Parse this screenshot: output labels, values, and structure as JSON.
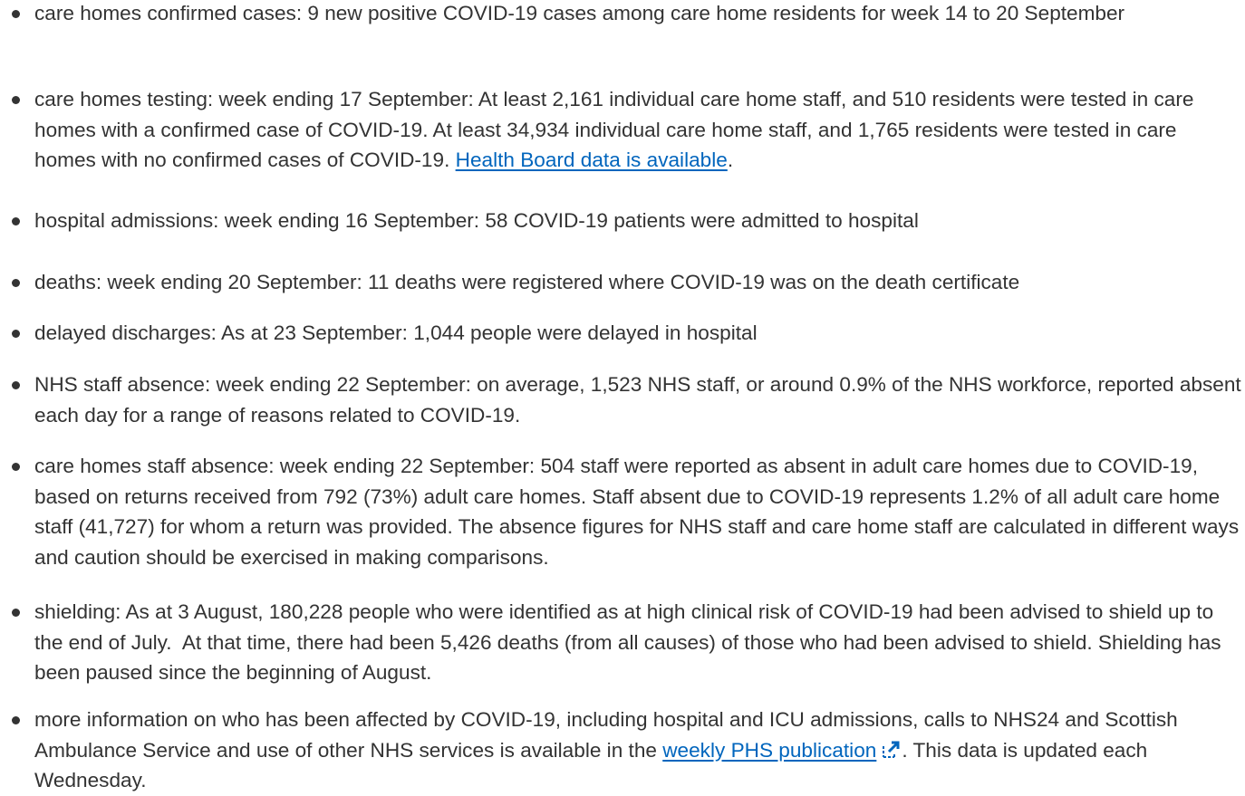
{
  "items": [
    {
      "segments": [
        {
          "text": "care homes confirmed cases: 9 new positive COVID-19 cases among care home residents for week 14 to 20 September"
        }
      ]
    },
    {
      "segments": [
        {
          "text": "care homes testing: week ending 17 September: At least 2,161 individual care home staff, and 510 residents were tested in care homes with a confirmed case of COVID-19. At least 34,934 individual care home staff, and 1,765 residents were tested in care homes with no confirmed cases of COVID-19. "
        },
        {
          "text": "Health Board data is available",
          "link": true
        },
        {
          "text": "."
        }
      ]
    },
    {
      "segments": [
        {
          "text": "hospital admissions: week ending 16 September: 58 COVID-19 patients were admitted to hospital"
        }
      ]
    },
    {
      "segments": [
        {
          "text": "deaths: week ending 20 September: 11 deaths were registered where COVID-19 was on the death certificate"
        }
      ]
    },
    {
      "segments": [
        {
          "text": "delayed discharges: As at 23 September: 1,044 people were delayed in hospital"
        }
      ]
    },
    {
      "segments": [
        {
          "text": "NHS staff absence: week ending 22 September: on average, 1,523 NHS staff, or around 0.9% of the NHS workforce, reported absent each day for a range of reasons related to COVID-19."
        }
      ]
    },
    {
      "segments": [
        {
          "text": "care homes staff absence: week ending 22 September: 504 staff were reported as absent in adult care homes due to COVID-19, based on returns received from 792 (73%) adult care homes. Staff absent due to COVID-19 represents 1.2% of all adult care home staff (41,727) for whom a return was provided. The absence figures for NHS staff and care home staff are calculated in different ways and caution should be exercised in making comparisons."
        }
      ]
    },
    {
      "segments": [
        {
          "text": "shielding: As at 3 August, 180,228 people who were identified as at high clinical risk of COVID-19 had been advised to shield up to the end of July.  At that time, there had been 5,426 deaths (from all causes) of those who had been advised to shield. Shielding has been paused since the beginning of August."
        }
      ]
    },
    {
      "segments": [
        {
          "text": "more information on who has been affected by COVID-19, including hospital and ICU admissions, calls to NHS24 and Scottish Ambulance Service and use of other NHS services is available in the "
        },
        {
          "text": "weekly PHS publication",
          "link": true,
          "external": true
        },
        {
          "text": ". This data is updated each Wednesday."
        }
      ]
    }
  ]
}
